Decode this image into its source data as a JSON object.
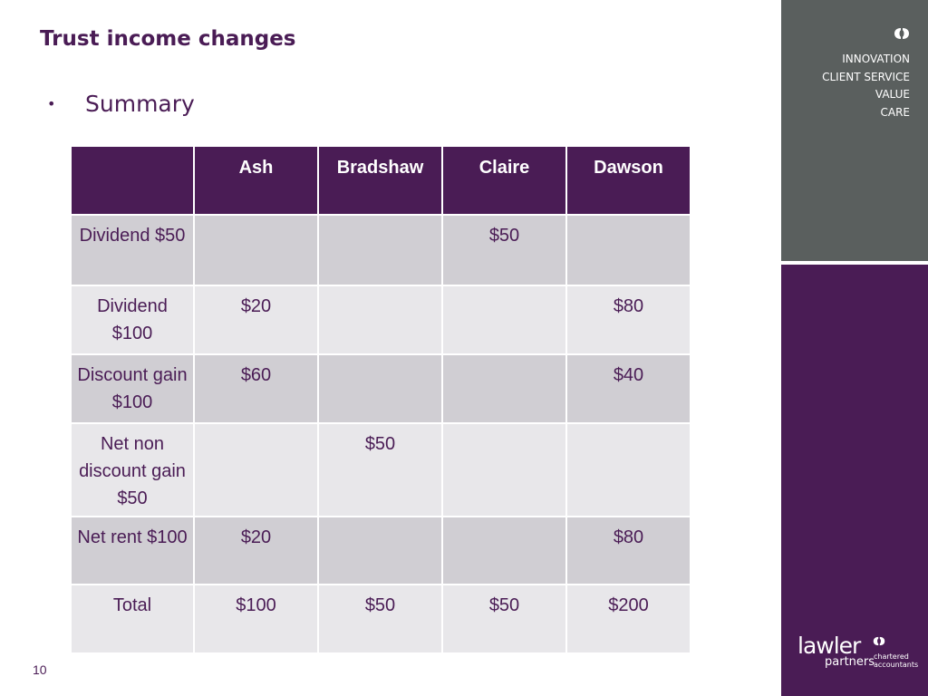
{
  "slide": {
    "title": "Trust income changes",
    "bullet": "Summary",
    "page_number": "10"
  },
  "table": {
    "headers": [
      "",
      "Ash",
      "Bradshaw",
      "Claire",
      "Dawson"
    ],
    "rows": [
      {
        "label": "Dividend $50",
        "ash": "",
        "bradshaw": "",
        "claire": "$50",
        "dawson": ""
      },
      {
        "label": "Dividend $100",
        "ash": "$20",
        "bradshaw": "",
        "claire": "",
        "dawson": "$80"
      },
      {
        "label": "Discount gain $100",
        "ash": "$60",
        "bradshaw": "",
        "claire": "",
        "dawson": "$40"
      },
      {
        "label": "Net non discount gain $50",
        "ash": "",
        "bradshaw": "$50",
        "claire": "",
        "dawson": ""
      },
      {
        "label": "Net rent $100",
        "ash": "$20",
        "bradshaw": "",
        "claire": "",
        "dawson": "$80"
      },
      {
        "label": "Total",
        "ash": "$100",
        "bradshaw": "$50",
        "claire": "$50",
        "dawson": "$200"
      }
    ]
  },
  "sidebar": {
    "values": [
      "INNOVATION",
      "CLIENT SERVICE",
      "VALUE",
      "CARE"
    ],
    "logo": {
      "word": "lawler",
      "sub": "partners",
      "tag_line1": "chartered",
      "tag_line2": "accountants"
    }
  },
  "colors": {
    "brand_purple": "#4a1c55",
    "sidebar_gray": "#5a5f5e",
    "row_dark": "#d0ced3",
    "row_light": "#e8e7ea"
  }
}
